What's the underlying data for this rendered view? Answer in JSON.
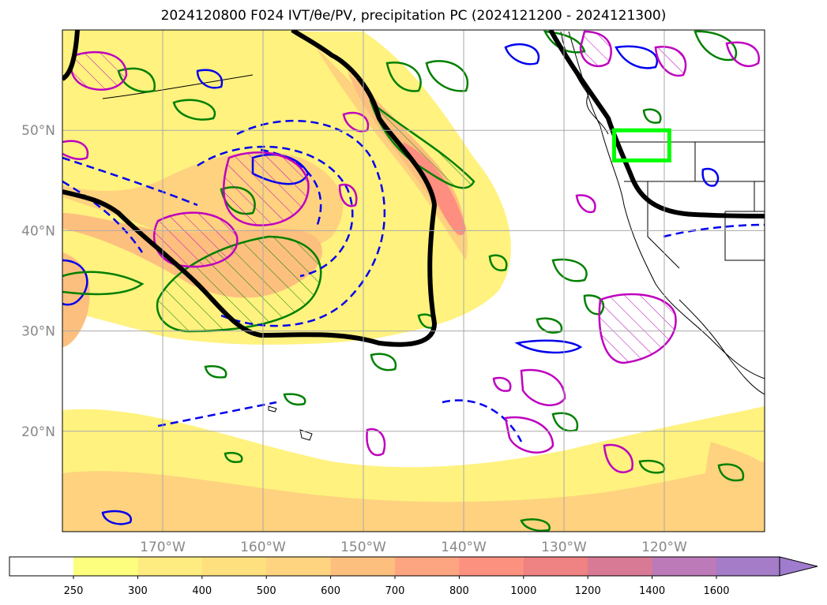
{
  "title": "2024120800 F024 IVT/θe/PV, precipitation PC (2024121200 - 2024121300)",
  "map": {
    "lon_range": [
      -180,
      -110
    ],
    "lat_range": [
      10,
      60
    ],
    "lon_ticks": [
      {
        "lon": -170,
        "label": "170°W"
      },
      {
        "lon": -160,
        "label": "160°W"
      },
      {
        "lon": -150,
        "label": "150°W"
      },
      {
        "lon": -140,
        "label": "140°W"
      },
      {
        "lon": -130,
        "label": "130°W"
      },
      {
        "lon": -120,
        "label": "120°W"
      }
    ],
    "lat_ticks": [
      {
        "lat": 50,
        "label": "50°N"
      },
      {
        "lat": 40,
        "label": "40°N"
      },
      {
        "lat": 30,
        "label": "30°N"
      },
      {
        "lat": 20,
        "label": "20°N"
      }
    ],
    "grid": true,
    "highlight_box": {
      "lon": [
        -125,
        -119.5
      ],
      "lat": [
        47,
        50
      ],
      "color": "#00ff00"
    }
  },
  "colorbar": {
    "labels": [
      "250",
      "300",
      "400",
      "500",
      "600",
      "700",
      "800",
      "1000",
      "1200",
      "1400",
      "1600"
    ],
    "colors": [
      "#ffffff",
      "#fefe7e",
      "#feec80",
      "#fee07e",
      "#fed480",
      "#fdbf7e",
      "#fda481",
      "#fd9180",
      "#ef8282",
      "#d87a96",
      "#bd7ab8",
      "#a47cc8",
      "#9f7ccd"
    ]
  },
  "colors": {
    "ivt_light": "#fff27f",
    "ivt_mid": "#fed27f",
    "ivt_high": "#fd8e80",
    "theta_e": "#0000ee",
    "pv": "#bf00bf",
    "precip": "#008000",
    "jet": "#000000"
  }
}
